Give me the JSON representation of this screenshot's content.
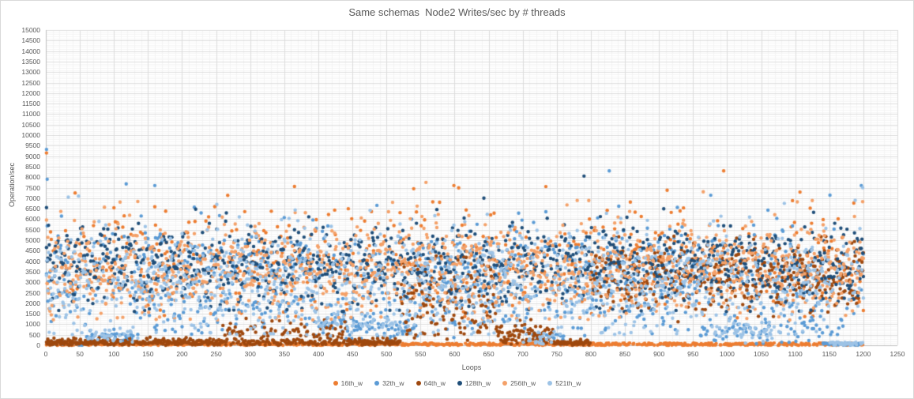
{
  "chart": {
    "title": "Same schemas  Node2 Writes/sec by # threads",
    "x_axis": {
      "title": "Loops",
      "min": 0,
      "max": 1250,
      "major_unit": 50,
      "minor_unit": 10,
      "tick_labels": [
        "0",
        "50",
        "100",
        "150",
        "200",
        "250",
        "300",
        "350",
        "400",
        "450",
        "500",
        "550",
        "600",
        "650",
        "700",
        "750",
        "800",
        "850",
        "900",
        "950",
        "1000",
        "1050",
        "1100",
        "1150",
        "1200",
        "1250"
      ]
    },
    "y_axis": {
      "title": "Operation/sec",
      "min": 0,
      "max": 15000,
      "major_unit": 500,
      "minor_unit": 100,
      "tick_labels": [
        "0",
        "500",
        "1000",
        "1500",
        "2000",
        "2500",
        "3000",
        "3500",
        "4000",
        "4500",
        "5000",
        "5500",
        "6000",
        "6500",
        "7000",
        "7500",
        "8000",
        "8500",
        "9000",
        "9500",
        "10000",
        "10500",
        "11000",
        "11500",
        "12000",
        "12500",
        "13000",
        "13500",
        "14000",
        "14500",
        "15000"
      ]
    }
  },
  "chart_data": {
    "type": "scatter",
    "title": "Same schemas  Node2 Writes/sec by # threads",
    "xlabel": "Loops",
    "ylabel": "Operation/sec",
    "xlim": [
      0,
      1250
    ],
    "ylim": [
      0,
      15000
    ],
    "grid": "major and minor gridlines on, light gray",
    "legend_position": "bottom-center",
    "points_per_series": 1200,
    "x_sampling": "one observation per loop, loops 1..1200",
    "marker_radius_px": 2.2,
    "generator_seed": 1337,
    "series": [
      {
        "name": "16th_w",
        "color": "#ED7D31",
        "summary": "About half the samples sit on a solid band at ~0-110 ops/sec across all 1200 loops; the rest scatter 1300-7600 centered near 4100; isolated spikes to ~9150.",
        "segments": [
          {
            "x0": 0,
            "x1": 1200,
            "w": 1.15,
            "dist": "u",
            "a": 0,
            "b": 110
          },
          {
            "x0": 0,
            "x1": 1200,
            "w": 1.0,
            "dist": "n",
            "a": 4100,
            "b": 1350,
            "lo": 1300,
            "hi": 7600
          }
        ],
        "outliers": [
          [
            1,
            9150
          ],
          [
            540,
            7450
          ],
          [
            912,
            7380
          ],
          [
            995,
            8300
          ]
        ]
      },
      {
        "name": "32th_w",
        "color": "#5B9BD5",
        "summary": "Broad cloud 700-7200 centered ~3300 over the full range; low clusters near 400 at loops 60-135, ~900 at loops 400-545, ~300 at loops 715-760, ~650 at loops 950-1170; drops to a 0-line band for loops 1140-1200; spikes to ~9300 near loop 1.",
        "segments": [
          {
            "x0": 0,
            "x1": 1200,
            "w": 0.75,
            "dist": "n",
            "a": 3300,
            "b": 1250,
            "lo": 700,
            "hi": 7200
          },
          {
            "x0": 0,
            "x1": 1200,
            "w": 0.1,
            "dist": "n",
            "a": 1500,
            "b": 500,
            "lo": 300,
            "hi": 2600
          },
          {
            "x0": 5,
            "x1": 90,
            "w": 0.3,
            "dist": "u",
            "a": 0,
            "b": 200
          },
          {
            "x0": 60,
            "x1": 135,
            "w": 1.2,
            "dist": "n",
            "a": 400,
            "b": 140,
            "lo": 100,
            "hi": 800
          },
          {
            "x0": 400,
            "x1": 545,
            "w": 0.9,
            "dist": "n",
            "a": 900,
            "b": 350,
            "lo": 250,
            "hi": 1700
          },
          {
            "x0": 715,
            "x1": 760,
            "w": 1.0,
            "dist": "n",
            "a": 300,
            "b": 180,
            "lo": 30,
            "hi": 700
          },
          {
            "x0": 950,
            "x1": 1170,
            "w": 0.55,
            "dist": "n",
            "a": 650,
            "b": 330,
            "lo": 60,
            "hi": 1400
          },
          {
            "x0": 1140,
            "x1": 1200,
            "w": 2.2,
            "dist": "u",
            "a": 0,
            "b": 120
          }
        ],
        "outliers": [
          [
            1,
            9320
          ],
          [
            2,
            7900
          ],
          [
            118,
            7680
          ],
          [
            160,
            7600
          ],
          [
            827,
            8300
          ],
          [
            1197,
            7600
          ]
        ]
      },
      {
        "name": "64th_w",
        "color": "#9E480E",
        "summary": "Hugs ~0-400 for loops 0-520 with bumps to ~1300 around loops 260-440; rises to 200-2800 (plus some 1800-4600) for loops 520-660; sinks back to ~0 around loops 660-800; then joins the main cloud at ~600-5200 centered 3400 for loops 800-1200.",
        "segments": [
          {
            "x0": 0,
            "x1": 520,
            "w": 1.0,
            "dist": "n",
            "a": 130,
            "b": 100,
            "lo": 0,
            "hi": 420
          },
          {
            "x0": 260,
            "x1": 440,
            "w": 0.75,
            "dist": "n",
            "a": 650,
            "b": 280,
            "lo": 150,
            "hi": 1300
          },
          {
            "x0": 520,
            "x1": 660,
            "w": 1.0,
            "dist": "n",
            "a": 1400,
            "b": 650,
            "lo": 200,
            "hi": 2800
          },
          {
            "x0": 520,
            "x1": 660,
            "w": 0.8,
            "dist": "n",
            "a": 3100,
            "b": 700,
            "lo": 1800,
            "hi": 4600
          },
          {
            "x0": 660,
            "x1": 745,
            "w": 1.0,
            "dist": "n",
            "a": 500,
            "b": 300,
            "lo": 30,
            "hi": 1400
          },
          {
            "x0": 745,
            "x1": 800,
            "w": 1.0,
            "dist": "n",
            "a": 120,
            "b": 90,
            "lo": 0,
            "hi": 400
          },
          {
            "x0": 800,
            "x1": 1200,
            "w": 1.0,
            "dist": "n",
            "a": 3400,
            "b": 850,
            "lo": 600,
            "hi": 5200
          }
        ],
        "outliers": []
      },
      {
        "name": "128th_w",
        "color": "#1F4E79",
        "summary": "Steady dense cloud 1600-6600 centered ~3800 across all loops; occasional spikes to ~8000.",
        "segments": [
          {
            "x0": 0,
            "x1": 1200,
            "w": 1.0,
            "dist": "n",
            "a": 3800,
            "b": 950,
            "lo": 1600,
            "hi": 6600
          }
        ],
        "outliers": [
          [
            1,
            6550
          ],
          [
            643,
            7000
          ],
          [
            790,
            8050
          ]
        ]
      },
      {
        "name": "256th_w",
        "color": "#F4A169",
        "summary": "Dense cloud 1200-6900 centered ~3600 across all loops; occasional spikes near 7750.",
        "segments": [
          {
            "x0": 0,
            "x1": 1200,
            "w": 1.0,
            "dist": "n",
            "a": 3600,
            "b": 1150,
            "lo": 1200,
            "hi": 6900
          }
        ],
        "outliers": [
          [
            558,
            7750
          ],
          [
            965,
            7300
          ]
        ]
      },
      {
        "name": "521th_w",
        "color": "#9DC3E6",
        "summary": "Wide cloud 500-6800 centered ~3000; low clusters ~500 at loops 60-135, ~1100 at loops 400-545, ~350 at loops 700-745, ~600 at loops 980-1070; 0-line band for loops 1150-1200; spikes to ~7500.",
        "segments": [
          {
            "x0": 0,
            "x1": 1200,
            "w": 0.8,
            "dist": "n",
            "a": 3000,
            "b": 1300,
            "lo": 500,
            "hi": 6800
          },
          {
            "x0": 60,
            "x1": 135,
            "w": 0.5,
            "dist": "n",
            "a": 500,
            "b": 200,
            "lo": 150,
            "hi": 900
          },
          {
            "x0": 400,
            "x1": 545,
            "w": 0.45,
            "dist": "n",
            "a": 1100,
            "b": 350,
            "lo": 350,
            "hi": 1900
          },
          {
            "x0": 700,
            "x1": 745,
            "w": 0.5,
            "dist": "n",
            "a": 350,
            "b": 200,
            "lo": 50,
            "hi": 800
          },
          {
            "x0": 980,
            "x1": 1070,
            "w": 0.5,
            "dist": "n",
            "a": 600,
            "b": 280,
            "lo": 100,
            "hi": 1200
          },
          {
            "x0": 1150,
            "x1": 1200,
            "w": 1.2,
            "dist": "u",
            "a": 0,
            "b": 150
          }
        ],
        "outliers": [
          [
            33,
            7050
          ],
          [
            48,
            7100
          ],
          [
            1188,
            6900
          ],
          [
            1199,
            7500
          ]
        ]
      }
    ],
    "colors": {
      "title_text": "#595959",
      "tick_text": "#595959",
      "major_gridline": "#DCDCDC",
      "minor_gridline": "#F4F4F4",
      "axis_line": "#BFBFBF",
      "border": "#D9D9D9",
      "background": "#FFFFFF"
    }
  }
}
